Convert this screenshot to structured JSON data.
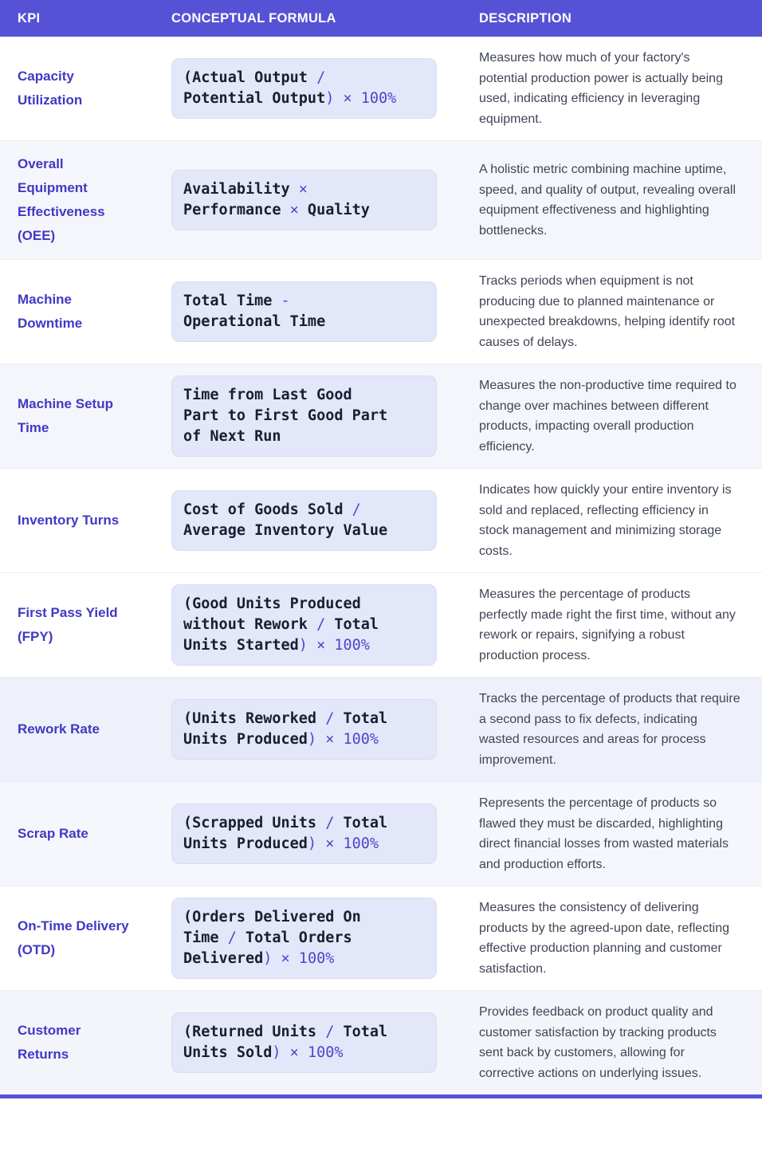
{
  "header": {
    "columns": [
      "KPI",
      "CONCEPTUAL FORMULA",
      "DESCRIPTION"
    ]
  },
  "colors": {
    "accent": "#5652D5",
    "kpi_text": "#4238C4",
    "description_text": "#3E4554",
    "formula_main_text": "#1B1D33",
    "formula_operator_text": "#4D46CB",
    "formula_box_bg": "#E3E7F9",
    "formula_box_border": "#D9DDF3",
    "row_stripe_light": "#F5F6FB"
  },
  "table": {
    "rows": [
      {
        "kpi": "Capacity Utilization",
        "bg": "#FFFFFF",
        "formula_lines": [
          [
            {
              "t": "(Actual Output ",
              "op": false
            },
            {
              "t": "/",
              "op": true
            }
          ],
          [
            {
              "t": "Potential Output",
              "op": false
            },
            {
              "t": ") × 100%",
              "op": true
            }
          ]
        ],
        "description": "Measures how much of your factory's potential production power is actually being used, indicating efficiency in leveraging equipment."
      },
      {
        "kpi": "Overall Equipment Effectiveness (OEE)",
        "bg": "#F5F6FB",
        "formula_lines": [
          [
            {
              "t": "Availability ",
              "op": false
            },
            {
              "t": "×",
              "op": true
            }
          ],
          [
            {
              "t": "Performance ",
              "op": false
            },
            {
              "t": "×",
              "op": true
            },
            {
              "t": " Quality",
              "op": false
            }
          ]
        ],
        "description": "A holistic metric combining machine uptime, speed, and quality of output, revealing overall equipment effectiveness and highlighting bottlenecks."
      },
      {
        "kpi": "Machine Downtime",
        "bg": "#FFFFFF",
        "formula_lines": [
          [
            {
              "t": "Total Time ",
              "op": false
            },
            {
              "t": "-",
              "op": true
            }
          ],
          [
            {
              "t": "Operational Time",
              "op": false
            }
          ]
        ],
        "description": "Tracks periods when equipment is not producing due to planned maintenance or unexpected breakdowns, helping identify root causes of delays."
      },
      {
        "kpi": "Machine Setup Time",
        "bg": "#F5F6FB",
        "formula_lines": [
          [
            {
              "t": "Time from Last Good",
              "op": false
            }
          ],
          [
            {
              "t": "Part to First Good Part",
              "op": false
            }
          ],
          [
            {
              "t": "of Next Run",
              "op": false
            }
          ]
        ],
        "description": "Measures the non-productive time required to change over machines between different products, impacting overall production efficiency."
      },
      {
        "kpi": "Inventory Turns",
        "bg": "#FFFFFF",
        "formula_lines": [
          [
            {
              "t": "Cost of Goods Sold ",
              "op": false
            },
            {
              "t": "/",
              "op": true
            }
          ],
          [
            {
              "t": "Average Inventory Value",
              "op": false
            }
          ]
        ],
        "description": "Indicates how quickly your entire inventory is sold and replaced, reflecting efficiency in stock management and minimizing storage costs."
      },
      {
        "kpi": "First Pass Yield (FPY)",
        "bg": "#FFFFFF",
        "formula_lines": [
          [
            {
              "t": "(Good Units Produced",
              "op": false
            }
          ],
          [
            {
              "t": "without Rework ",
              "op": false
            },
            {
              "t": "/",
              "op": true
            },
            {
              "t": " Total",
              "op": false
            }
          ],
          [
            {
              "t": "Units Started",
              "op": false
            },
            {
              "t": ") × 100%",
              "op": true
            }
          ]
        ],
        "description": "Measures the percentage of products perfectly made right the first time, without any rework or repairs, signifying a robust production process."
      },
      {
        "kpi": "Rework Rate",
        "bg": "#EEF1FA",
        "formula_lines": [
          [
            {
              "t": "(Units Reworked ",
              "op": false
            },
            {
              "t": "/",
              "op": true
            },
            {
              "t": " Total",
              "op": false
            }
          ],
          [
            {
              "t": "Units Produced",
              "op": false
            },
            {
              "t": ") × 100%",
              "op": true
            }
          ]
        ],
        "description": "Tracks the percentage of products that require a second pass to fix defects, indicating wasted resources and areas for process improvement."
      },
      {
        "kpi": "Scrap Rate",
        "bg": "#F6F7FC",
        "formula_lines": [
          [
            {
              "t": "(Scrapped Units ",
              "op": false
            },
            {
              "t": "/",
              "op": true
            },
            {
              "t": " Total",
              "op": false
            }
          ],
          [
            {
              "t": "Units Produced",
              "op": false
            },
            {
              "t": ") × 100%",
              "op": true
            }
          ]
        ],
        "description": "Represents the percentage of products so flawed they must be discarded, highlighting direct financial losses from wasted materials and production efforts."
      },
      {
        "kpi": "On-Time Delivery (OTD)",
        "bg": "#FFFFFF",
        "formula_lines": [
          [
            {
              "t": "(Orders Delivered On",
              "op": false
            }
          ],
          [
            {
              "t": "Time ",
              "op": false
            },
            {
              "t": "/",
              "op": true
            },
            {
              "t": " Total Orders",
              "op": false
            }
          ],
          [
            {
              "t": "Delivered",
              "op": false
            },
            {
              "t": ") × 100%",
              "op": true
            }
          ]
        ],
        "description": "Measures the consistency of delivering products by the agreed-upon date, reflecting effective production planning and customer satisfaction."
      },
      {
        "kpi": "Customer Returns",
        "bg": "#F3F5FB",
        "formula_lines": [
          [
            {
              "t": "(Returned Units ",
              "op": false
            },
            {
              "t": "/",
              "op": true
            },
            {
              "t": " Total",
              "op": false
            }
          ],
          [
            {
              "t": "Units Sold",
              "op": false
            },
            {
              "t": ") × 100%",
              "op": true
            }
          ]
        ],
        "description": "Provides feedback on product quality and customer satisfaction by tracking products sent back by customers, allowing for corrective actions on underlying issues."
      }
    ]
  }
}
